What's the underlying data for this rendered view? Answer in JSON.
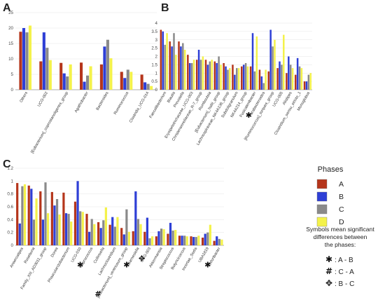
{
  "colors": {
    "A": "#b5351b",
    "B": "#2e3fd6",
    "C": "#8a8a8a",
    "D": "#f4f24a",
    "gridline": "#e6e6e6"
  },
  "legend": {
    "title": "Phases",
    "items": [
      {
        "key": "A",
        "label": "A"
      },
      {
        "key": "B",
        "label": "B"
      },
      {
        "key": "C",
        "label": "C"
      },
      {
        "key": "D",
        "label": "D"
      }
    ],
    "note_lines": [
      "Symbols mean significant",
      "differences between",
      "the phases:"
    ],
    "symbols": [
      {
        "symbol": "✱",
        "text": ": A - B"
      },
      {
        "symbol": "#",
        "text": ": C - A"
      },
      {
        "symbol": "✥",
        "text": ": B - C"
      }
    ]
  },
  "chart_data": [
    {
      "panel": "A",
      "type": "bar",
      "ylim": [
        0,
        25
      ],
      "yticks": [
        0,
        5,
        10,
        15,
        20,
        25
      ],
      "series_names": [
        "A",
        "B",
        "C",
        "D"
      ],
      "categories": [
        {
          "label": "Others",
          "values": [
            18.8,
            20.0,
            18.6,
            20.8
          ],
          "mark": ""
        },
        {
          "label": "UCG-002",
          "values": [
            9.2,
            18.6,
            13.6,
            9.6
          ],
          "mark": ""
        },
        {
          "label": "[Eubacterium]_coprostanoligenes_group",
          "values": [
            8.7,
            5.3,
            4.3,
            8.2
          ],
          "mark": ""
        },
        {
          "label": "Agathobacter",
          "values": [
            8.8,
            2.6,
            4.6,
            7.6
          ],
          "mark": ""
        },
        {
          "label": "Bacteroides",
          "values": [
            8.2,
            14.0,
            16.2,
            10.2
          ],
          "mark": ""
        },
        {
          "label": "Ruminococcus",
          "values": [
            5.8,
            3.8,
            6.5,
            5.8
          ],
          "mark": ""
        },
        {
          "label": "Clostridia_UCG-014",
          "values": [
            4.9,
            2.4,
            1.9,
            1.2
          ],
          "mark": ""
        }
      ]
    },
    {
      "panel": "B",
      "type": "bar",
      "ylim": [
        0,
        4
      ],
      "yticks": [
        0,
        0.5,
        1,
        1.5,
        2,
        2.5,
        3,
        3.5,
        4
      ],
      "series_names": [
        "A",
        "B",
        "C",
        "D"
      ],
      "categories": [
        {
          "label": "Faecalibacterium",
          "values": [
            3.6,
            3.5,
            2.7,
            3.4
          ],
          "mark": ""
        },
        {
          "label": "Blautia",
          "values": [
            2.9,
            2.6,
            3.4,
            2.1
          ],
          "mark": ""
        },
        {
          "label": "Prevotella",
          "values": [
            2.9,
            2.6,
            2.8,
            2.4
          ],
          "mark": ""
        },
        {
          "label": "Erysipelotrichaceae_UCG-003",
          "values": [
            2.1,
            1.6,
            1.6,
            1.8
          ],
          "mark": ""
        },
        {
          "label": "Christensenellaceae_R-7_group",
          "values": [
            1.8,
            2.4,
            1.8,
            2.0
          ],
          "mark": ""
        },
        {
          "label": "Romboutsia",
          "values": [
            1.8,
            1.5,
            1.7,
            1.8
          ],
          "mark": ""
        },
        {
          "label": "[Eubacterium]_hallii_group",
          "values": [
            1.7,
            1.6,
            2.0,
            1.5
          ],
          "mark": ""
        },
        {
          "label": "Lachnospiraceae_NK4A136_group",
          "values": [
            1.6,
            1.4,
            1.2,
            1.3
          ],
          "mark": ""
        },
        {
          "label": "Subdoligranulum",
          "values": [
            1.5,
            0.9,
            1.3,
            1.3
          ],
          "mark": ""
        },
        {
          "label": "NK4A214_group",
          "values": [
            1.4,
            1.5,
            1.6,
            1.4
          ],
          "mark": ""
        },
        {
          "label": "Fusicatenibacter",
          "values": [
            1.4,
            3.4,
            1.1,
            3.2
          ],
          "mark": ""
        },
        {
          "label": "Parabacteroides",
          "values": [
            1.2,
            0.8,
            0.4,
            1.2
          ],
          "mark": "✱"
        },
        {
          "label": "[Ruminococcus]_torques_group",
          "values": [
            1.1,
            3.6,
            2.6,
            3.0
          ],
          "mark": ""
        },
        {
          "label": "UCG-005",
          "values": [
            1.3,
            1.7,
            1.5,
            3.3
          ],
          "mark": ""
        },
        {
          "label": "Alistipes",
          "values": [
            1.0,
            2.0,
            1.5,
            1.3
          ],
          "mark": ""
        },
        {
          "label": "Clostridium_sensu_stricto_1",
          "values": [
            0.9,
            1.9,
            1.4,
            1.3
          ],
          "mark": ""
        },
        {
          "label": "Monoglobus",
          "values": [
            0.5,
            0.5,
            0.9,
            1.0
          ],
          "mark": ""
        }
      ]
    },
    {
      "panel": "C",
      "type": "bar",
      "ylim": [
        0,
        1.2
      ],
      "yticks": [
        0,
        0.2,
        0.4,
        0.6,
        0.8,
        1,
        1.2
      ],
      "series_names": [
        "A",
        "B",
        "C",
        "D"
      ],
      "categories": [
        {
          "label": "Anaerostipes",
          "values": [
            0.97,
            0.34,
            0.92,
            0.95
          ],
          "mark": ""
        },
        {
          "label": "Roseburia",
          "values": [
            0.93,
            0.88,
            0.4,
            0.73
          ],
          "mark": ""
        },
        {
          "label": "Family_XIII_AD3011_group",
          "values": [
            0.84,
            0.4,
            0.98,
            0.5
          ],
          "mark": ""
        },
        {
          "label": "Dorea",
          "values": [
            0.83,
            0.62,
            0.72,
            0.48
          ],
          "mark": ""
        },
        {
          "label": "Phascolarctobacterium",
          "values": [
            0.82,
            0.5,
            0.49,
            0.37
          ],
          "mark": ""
        },
        {
          "label": "UCG-010",
          "values": [
            0.68,
            1.0,
            0.53,
            0.52
          ],
          "mark": ""
        },
        {
          "label": "Coprococcus",
          "values": [
            0.49,
            0.21,
            0.41,
            0.33
          ],
          "mark": "✱"
        },
        {
          "label": "Collinsella",
          "values": [
            0.36,
            0.27,
            0.39,
            0.59
          ],
          "mark": ""
        },
        {
          "label": "Lachnoclostridium",
          "values": [
            0.32,
            0.44,
            0.29,
            0.44
          ],
          "mark": ""
        },
        {
          "label": "[Eubacterium]_ventriosum_group",
          "values": [
            0.27,
            0.17,
            0.56,
            0.21
          ],
          "mark": "#"
        },
        {
          "label": "Barnesiella",
          "values": [
            0.22,
            0.84,
            0.41,
            0.33
          ],
          "mark": "✱"
        },
        {
          "label": "UCG-003",
          "values": [
            0.21,
            0.43,
            0.11,
            0.14
          ],
          "mark": "✥"
        },
        {
          "label": "Akkermansia",
          "values": [
            0.14,
            0.22,
            0.26,
            0.25
          ],
          "mark": ""
        },
        {
          "label": "Streptococcus",
          "values": [
            0.18,
            0.35,
            0.23,
            0.24
          ],
          "mark": ""
        },
        {
          "label": "Butyricicoccus",
          "values": [
            0.15,
            0.15,
            0.15,
            0.14
          ],
          "mark": ""
        },
        {
          "label": "Incertae_Sedis",
          "values": [
            0.14,
            0.13,
            0.13,
            0.15
          ],
          "mark": ""
        },
        {
          "label": "UBA1819",
          "values": [
            0.12,
            0.18,
            0.2,
            0.32
          ],
          "mark": ""
        },
        {
          "label": "Odoribacter",
          "values": [
            0.07,
            0.14,
            0.1,
            0.09
          ],
          "mark": "✱"
        }
      ]
    }
  ]
}
